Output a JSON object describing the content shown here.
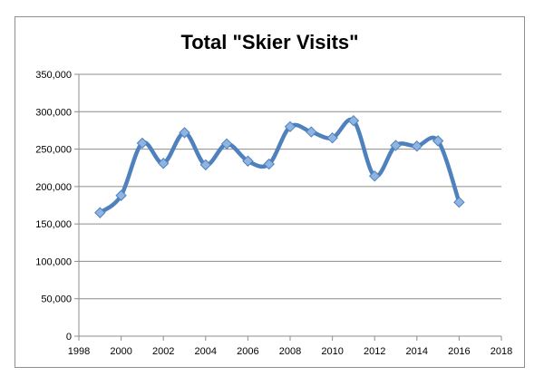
{
  "chart_data": {
    "type": "line",
    "title": "Total \"Skier Visits\"",
    "xlabel": "",
    "ylabel": "",
    "xlim": [
      1998,
      2018
    ],
    "ylim": [
      0,
      350000
    ],
    "x_ticks": [
      1998,
      2000,
      2002,
      2004,
      2006,
      2008,
      2010,
      2012,
      2014,
      2016,
      2018
    ],
    "x_tick_labels": [
      "1998",
      "2000",
      "2002",
      "2004",
      "2006",
      "2008",
      "2010",
      "2012",
      "2014",
      "2016",
      "2018"
    ],
    "y_ticks": [
      0,
      50000,
      100000,
      150000,
      200000,
      250000,
      300000,
      350000
    ],
    "y_tick_labels": [
      "0",
      "50,000",
      "100,000",
      "150,000",
      "200,000",
      "250,000",
      "300,000",
      "350,000"
    ],
    "grid": "horizontal",
    "legend": "none",
    "smooth": true,
    "series": [
      {
        "color": "#4f81bd",
        "marker_color": "#8db4e2",
        "x": [
          1999,
          2000,
          2001,
          2002,
          2003,
          2004,
          2005,
          2006,
          2007,
          2008,
          2009,
          2010,
          2011,
          2012,
          2013,
          2014,
          2015,
          2016
        ],
        "y": [
          165000,
          188000,
          258000,
          231000,
          272000,
          229000,
          257000,
          234000,
          230000,
          280000,
          273000,
          265000,
          288000,
          214000,
          255000,
          254000,
          261000,
          179000
        ]
      }
    ]
  }
}
